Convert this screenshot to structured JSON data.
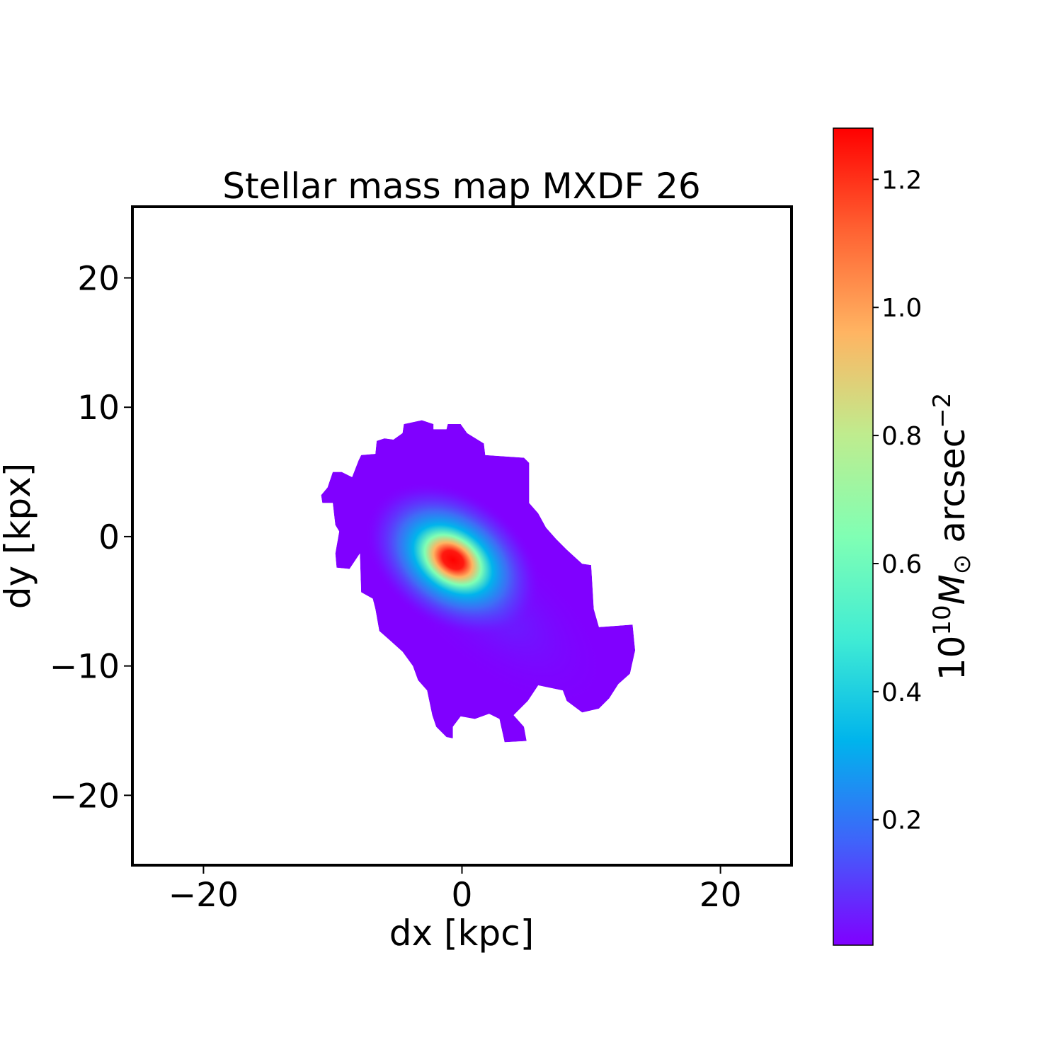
{
  "chart_data": {
    "type": "heatmap",
    "title": "Stellar mass map MXDF 26",
    "xlabel": "dx [kpc]",
    "ylabel": "dy [kpx]",
    "xlim": [
      -25.5,
      25.5
    ],
    "ylim": [
      -25.4,
      25.5
    ],
    "xticks": [
      -20,
      0,
      20
    ],
    "yticks": [
      -20,
      -10,
      0,
      10,
      20
    ],
    "xtick_labels": [
      "−20",
      "0",
      "20"
    ],
    "ytick_labels": [
      "−20",
      "−10",
      "0",
      "10",
      "20"
    ],
    "grid": false,
    "colormap": "rainbow",
    "colorbar": {
      "label_base": "10",
      "label_exp": "10",
      "label_unit": "M",
      "label_sub": "⊙",
      "label_tail": " arcsec",
      "label_tail_exp": "−2",
      "range": [
        0.004,
        1.28
      ],
      "ticks": [
        0.2,
        0.4,
        0.6,
        0.8,
        1.0,
        1.2
      ],
      "tick_labels": [
        "0.2",
        "0.4",
        "0.6",
        "0.8",
        "1.0",
        "1.2"
      ],
      "colors": [
        "#8000ff",
        "#4062fa",
        "#00b4ec",
        "#40ecd4",
        "#80ffb4",
        "#bfec8e",
        "#ffb462",
        "#ff6232",
        "#ff0000"
      ]
    },
    "peak": {
      "x": -0.7,
      "y": -1.8,
      "value": 1.28
    },
    "background_value_color": "#8000ff",
    "mask_outline_kpc": [
      [
        -4.5,
        8.7
      ],
      [
        -3.1,
        9.0
      ],
      [
        -2.2,
        8.7
      ],
      [
        -2.2,
        8.3
      ],
      [
        -1.2,
        8.3
      ],
      [
        -1.1,
        8.7
      ],
      [
        -0.1,
        8.7
      ],
      [
        0.4,
        8.0
      ],
      [
        1.7,
        7.2
      ],
      [
        1.8,
        6.3
      ],
      [
        4.8,
        6.1
      ],
      [
        5.2,
        5.7
      ],
      [
        5.2,
        2.6
      ],
      [
        5.9,
        1.8
      ],
      [
        6.5,
        0.7
      ],
      [
        7.3,
        -0.2
      ],
      [
        8.1,
        -1.0
      ],
      [
        9.3,
        -2.1
      ],
      [
        10.0,
        -2.2
      ],
      [
        10.2,
        -5.6
      ],
      [
        10.6,
        -7.0
      ],
      [
        13.2,
        -6.8
      ],
      [
        13.4,
        -8.8
      ],
      [
        13.0,
        -10.6
      ],
      [
        12.1,
        -11.4
      ],
      [
        11.4,
        -12.5
      ],
      [
        10.6,
        -13.3
      ],
      [
        9.3,
        -13.6
      ],
      [
        8.1,
        -12.7
      ],
      [
        7.8,
        -11.9
      ],
      [
        5.9,
        -11.5
      ],
      [
        5.1,
        -12.7
      ],
      [
        4.0,
        -13.8
      ],
      [
        4.8,
        -14.7
      ],
      [
        5.0,
        -15.8
      ],
      [
        3.3,
        -15.9
      ],
      [
        2.9,
        -14.1
      ],
      [
        2.1,
        -13.7
      ],
      [
        1.0,
        -14.1
      ],
      [
        -0.1,
        -13.9
      ],
      [
        -0.7,
        -14.7
      ],
      [
        -0.7,
        -15.6
      ],
      [
        -1.2,
        -15.5
      ],
      [
        -2.0,
        -14.7
      ],
      [
        -2.3,
        -13.8
      ],
      [
        -2.7,
        -11.9
      ],
      [
        -3.4,
        -11.1
      ],
      [
        -3.8,
        -10.0
      ],
      [
        -4.6,
        -8.9
      ],
      [
        -5.6,
        -8.0
      ],
      [
        -6.4,
        -7.3
      ],
      [
        -6.7,
        -5.6
      ],
      [
        -6.9,
        -4.8
      ],
      [
        -7.8,
        -4.3
      ],
      [
        -7.9,
        -1.3
      ],
      [
        -8.7,
        -2.5
      ],
      [
        -9.7,
        -2.4
      ],
      [
        -9.8,
        -1.3
      ],
      [
        -9.5,
        0.4
      ],
      [
        -9.8,
        0.9
      ],
      [
        -10.0,
        2.6
      ],
      [
        -10.8,
        2.6
      ],
      [
        -10.9,
        3.2
      ],
      [
        -10.4,
        3.8
      ],
      [
        -10.0,
        5.0
      ],
      [
        -9.3,
        5.0
      ],
      [
        -8.5,
        4.6
      ],
      [
        -8.0,
        5.9
      ],
      [
        -7.8,
        6.3
      ],
      [
        -6.7,
        6.4
      ],
      [
        -6.6,
        7.4
      ],
      [
        -6.0,
        7.6
      ],
      [
        -5.3,
        7.5
      ],
      [
        -4.6,
        8.0
      ]
    ]
  }
}
